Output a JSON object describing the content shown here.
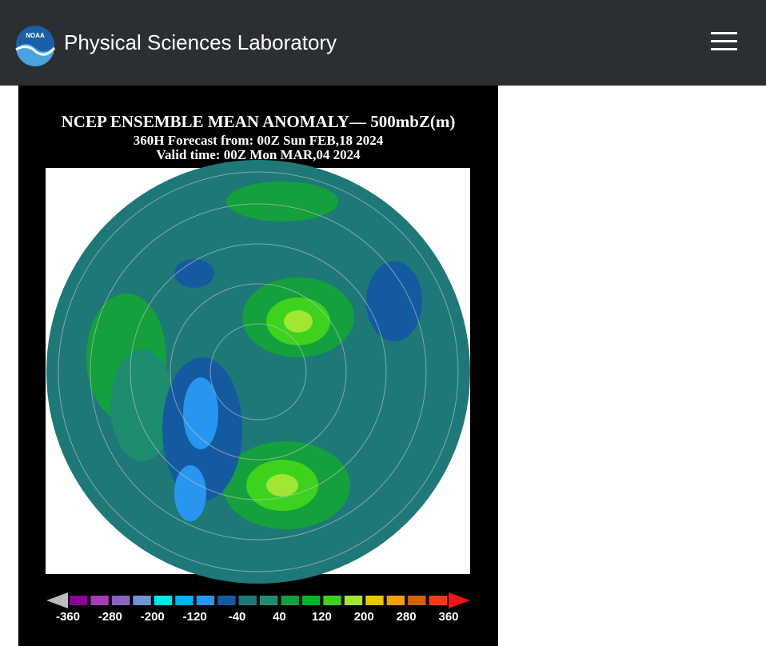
{
  "header": {
    "logo_text": "NOAA",
    "title": "Physical Sciences Laboratory"
  },
  "figure": {
    "title_lines": [
      "NCEP ENSEMBLE MEAN ANOMALY— 500mbZ(m)",
      "360H Forecast from: 00Z Sun FEB,18 2024",
      "Valid time: 00Z Mon MAR,04 2024"
    ],
    "colorbar": {
      "colors": [
        "#8c0096",
        "#a83cb4",
        "#8c64be",
        "#6e96d2",
        "#00e6e6",
        "#00b4f0",
        "#2896f0",
        "#145aa0",
        "#1e7878",
        "#1e8c6e",
        "#14a03c",
        "#00b428",
        "#3cd21e",
        "#a0e632",
        "#e6c800",
        "#f0a000",
        "#d26400",
        "#f03c14"
      ],
      "labels": [
        -360,
        -280,
        -200,
        -120,
        -40,
        40,
        120,
        200,
        280,
        360
      ]
    }
  }
}
